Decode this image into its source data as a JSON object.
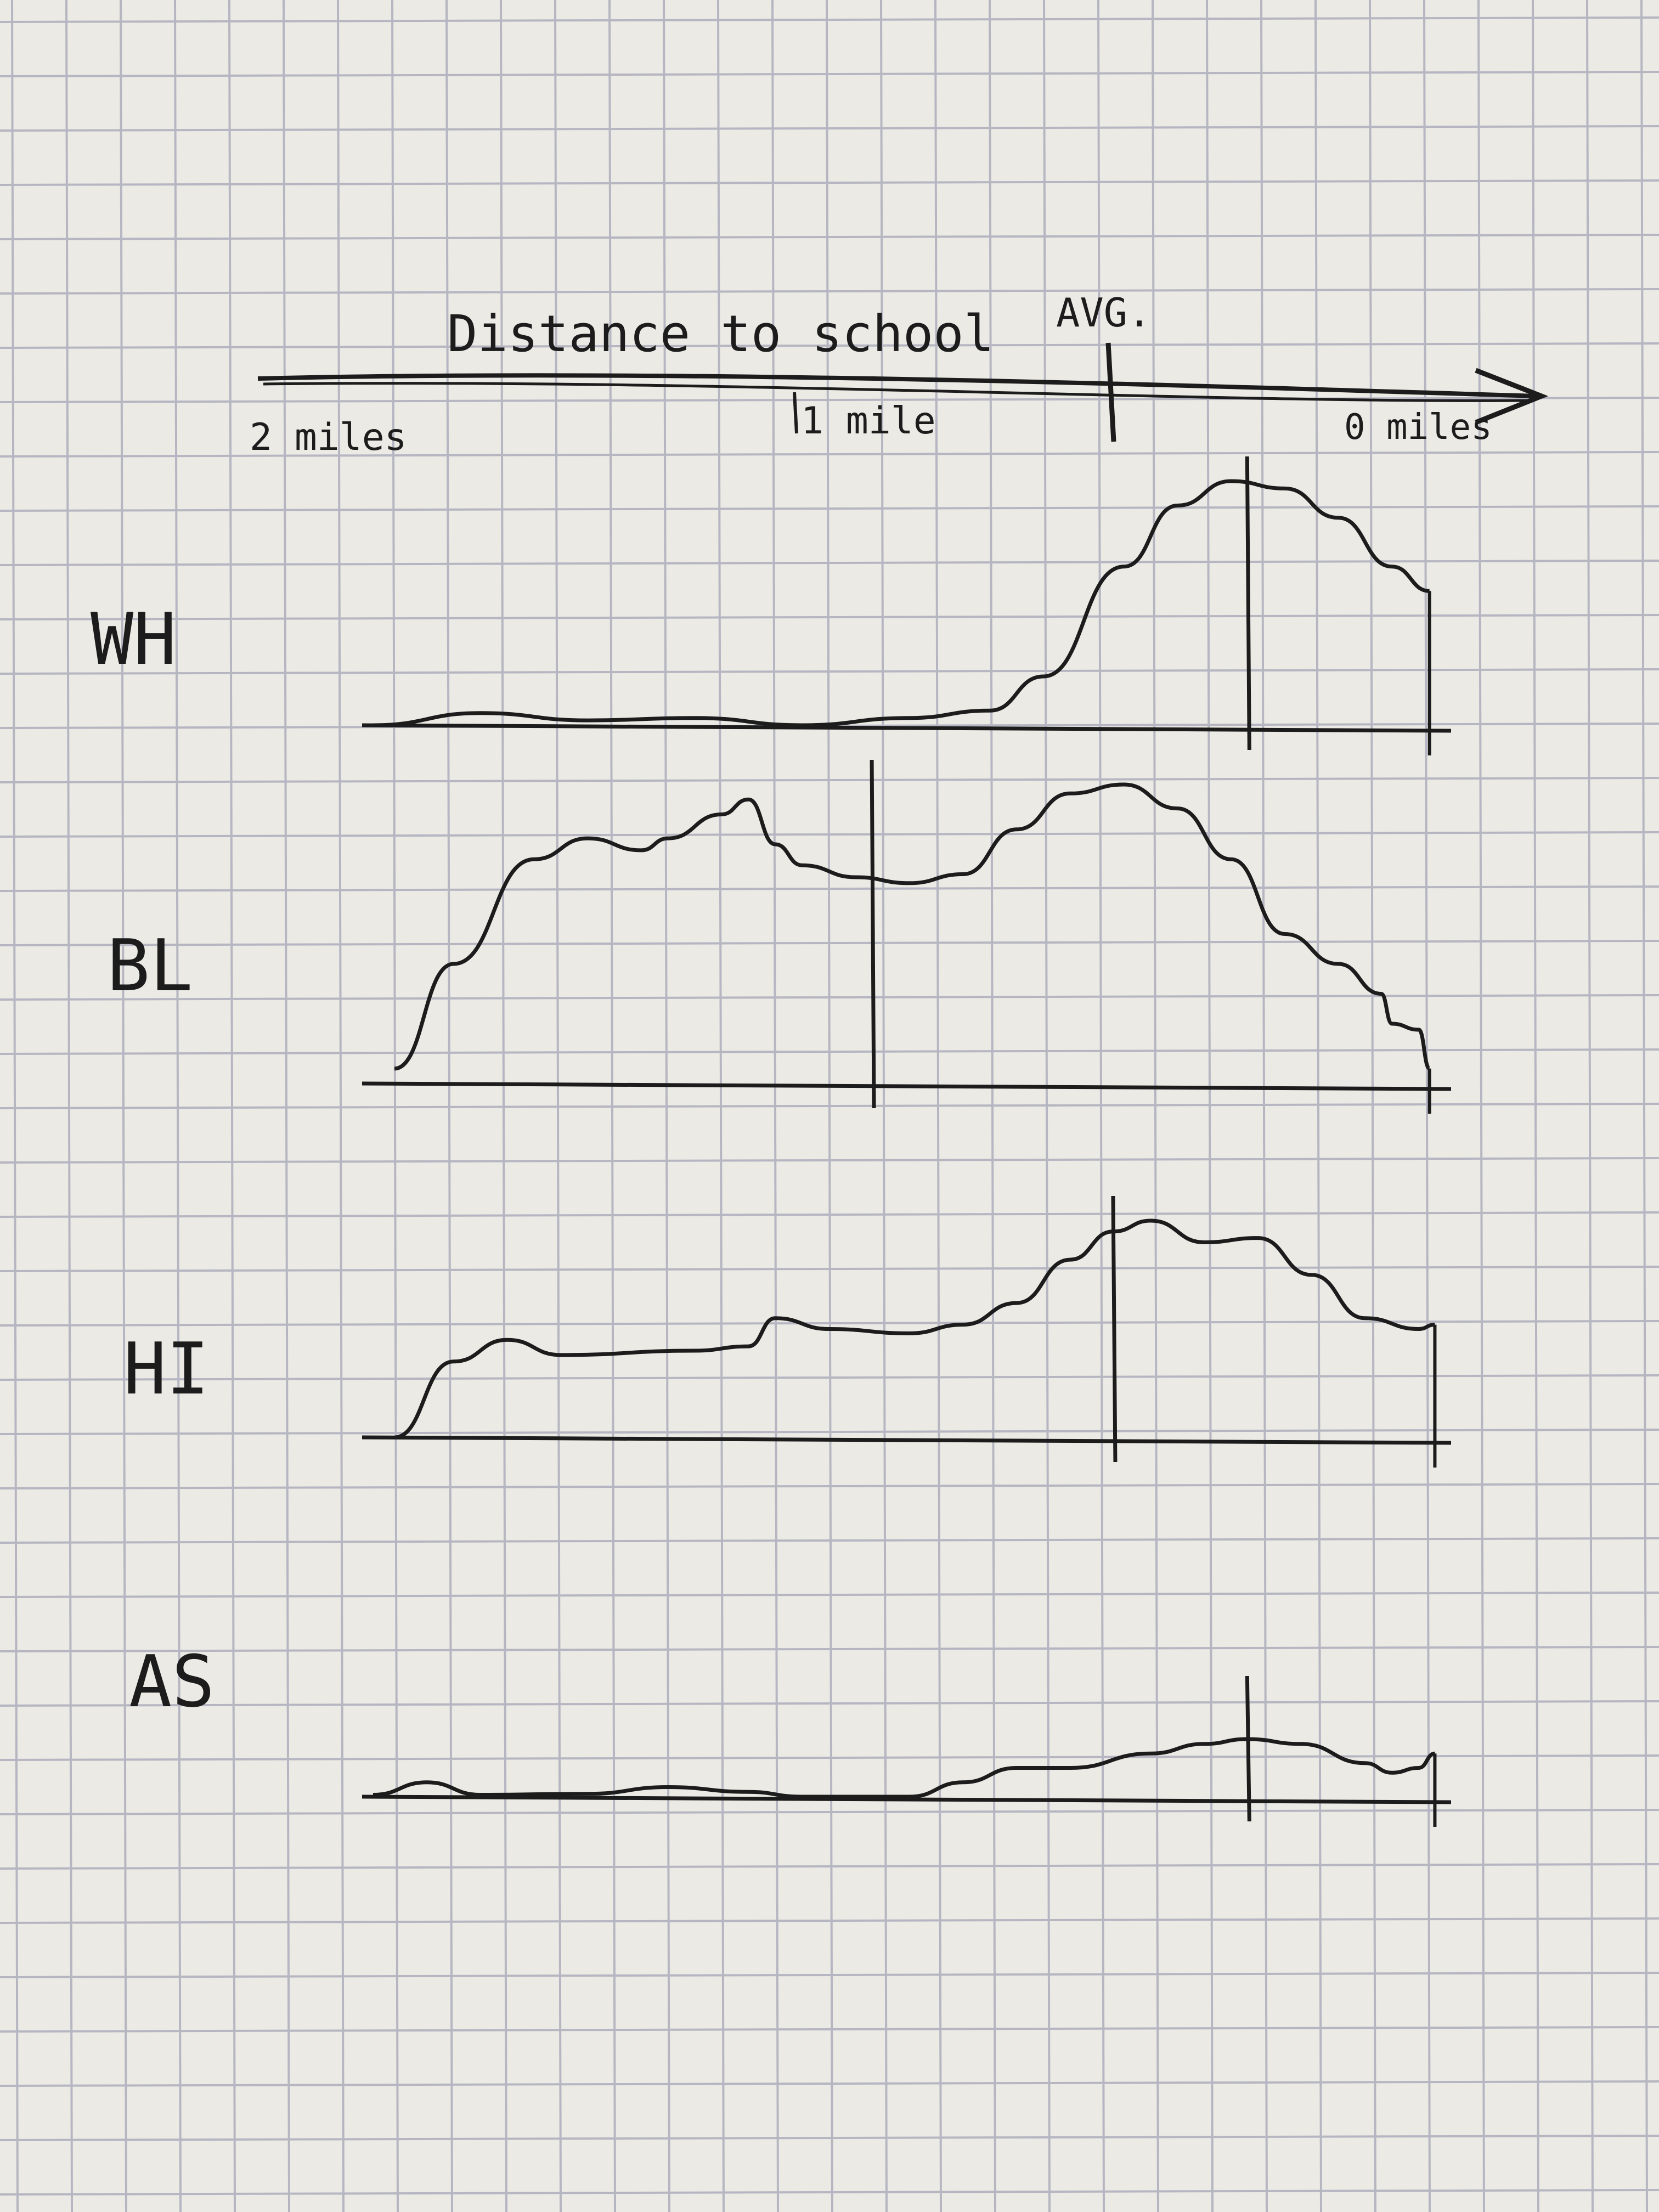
{
  "axis": {
    "title": "Distance to school",
    "avg_label": "AVG.",
    "start_label": "2 miles",
    "mid_label": "1 mile",
    "end_label": "0 miles",
    "domain_miles": [
      2,
      0
    ]
  },
  "colors": {
    "paper": "#eceae4",
    "grid": "#b5b6c2",
    "ink": "#1c1c1c"
  },
  "chart_data": {
    "type": "area",
    "title": "Distance to school",
    "xlabel": "",
    "ylabel": "",
    "x_direction": "decreasing (2 miles on left, 0 miles on right)",
    "xlim": [
      2,
      0
    ],
    "y_units": "relative density (0-1, hand-drawn)",
    "grid": true,
    "series": [
      {
        "name": "WH",
        "avg_miles": 0.37,
        "points": [
          [
            2.0,
            0.0
          ],
          [
            1.8,
            0.05
          ],
          [
            1.6,
            0.02
          ],
          [
            1.4,
            0.03
          ],
          [
            1.2,
            0.0
          ],
          [
            1.0,
            0.03
          ],
          [
            0.85,
            0.06
          ],
          [
            0.75,
            0.2
          ],
          [
            0.6,
            0.65
          ],
          [
            0.5,
            0.9
          ],
          [
            0.4,
            1.0
          ],
          [
            0.3,
            0.97
          ],
          [
            0.2,
            0.85
          ],
          [
            0.1,
            0.65
          ],
          [
            0.03,
            0.55
          ]
        ]
      },
      {
        "name": "BL",
        "avg_miles": 1.07,
        "points": [
          [
            1.96,
            0.05
          ],
          [
            1.85,
            0.4
          ],
          [
            1.7,
            0.75
          ],
          [
            1.6,
            0.82
          ],
          [
            1.5,
            0.78
          ],
          [
            1.45,
            0.82
          ],
          [
            1.35,
            0.9
          ],
          [
            1.3,
            0.95
          ],
          [
            1.25,
            0.8
          ],
          [
            1.2,
            0.73
          ],
          [
            1.1,
            0.69
          ],
          [
            1.0,
            0.67
          ],
          [
            0.9,
            0.7
          ],
          [
            0.8,
            0.85
          ],
          [
            0.7,
            0.97
          ],
          [
            0.6,
            1.0
          ],
          [
            0.5,
            0.92
          ],
          [
            0.4,
            0.75
          ],
          [
            0.3,
            0.5
          ],
          [
            0.2,
            0.4
          ],
          [
            0.12,
            0.3
          ],
          [
            0.1,
            0.2
          ],
          [
            0.05,
            0.18
          ],
          [
            0.03,
            0.05
          ]
        ]
      },
      {
        "name": "HI",
        "avg_miles": 0.62,
        "points": [
          [
            1.96,
            0.0
          ],
          [
            1.85,
            0.35
          ],
          [
            1.75,
            0.45
          ],
          [
            1.65,
            0.38
          ],
          [
            1.4,
            0.4
          ],
          [
            1.3,
            0.42
          ],
          [
            1.25,
            0.55
          ],
          [
            1.15,
            0.5
          ],
          [
            1.0,
            0.48
          ],
          [
            0.9,
            0.52
          ],
          [
            0.8,
            0.62
          ],
          [
            0.7,
            0.82
          ],
          [
            0.62,
            0.95
          ],
          [
            0.55,
            1.0
          ],
          [
            0.45,
            0.9
          ],
          [
            0.35,
            0.92
          ],
          [
            0.25,
            0.75
          ],
          [
            0.15,
            0.55
          ],
          [
            0.05,
            0.5
          ],
          [
            0.02,
            0.52
          ]
        ]
      },
      {
        "name": "AS",
        "avg_miles": 0.37,
        "points": [
          [
            2.0,
            0.02
          ],
          [
            1.9,
            0.15
          ],
          [
            1.8,
            0.02
          ],
          [
            1.6,
            0.03
          ],
          [
            1.45,
            0.1
          ],
          [
            1.3,
            0.05
          ],
          [
            1.2,
            0.0
          ],
          [
            1.0,
            0.0
          ],
          [
            0.9,
            0.15
          ],
          [
            0.8,
            0.3
          ],
          [
            0.7,
            0.3
          ],
          [
            0.55,
            0.45
          ],
          [
            0.45,
            0.55
          ],
          [
            0.37,
            0.6
          ],
          [
            0.27,
            0.55
          ],
          [
            0.15,
            0.35
          ],
          [
            0.1,
            0.25
          ],
          [
            0.05,
            0.3
          ],
          [
            0.02,
            0.45
          ]
        ]
      }
    ]
  }
}
